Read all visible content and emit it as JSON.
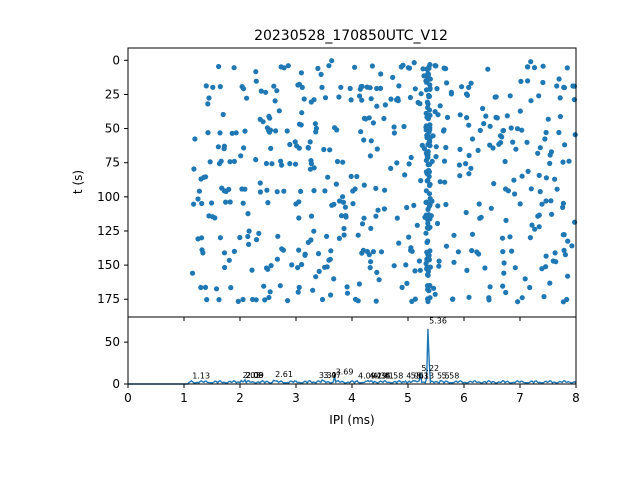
{
  "chart_data": [
    {
      "type": "scatter",
      "title": "20230528_170850UTC_V12",
      "xlabel": "",
      "ylabel": "t (s)",
      "xlim": [
        0,
        8
      ],
      "ylim": [
        188,
        -9
      ],
      "y_inverted": true,
      "yticks": [
        0,
        25,
        50,
        75,
        100,
        125,
        150,
        175
      ],
      "y_tick_labels": [
        "0",
        "25",
        "50",
        "75",
        "100",
        "125",
        "150",
        "175"
      ],
      "x_tick_labels_shown": false,
      "color": "#1f77b4",
      "marker": "circle",
      "dense_bands_t": [
        5,
        20,
        28,
        42,
        52,
        65,
        75,
        85,
        95,
        105,
        115,
        130,
        140,
        151,
        166,
        176
      ],
      "peak_ipi_column_ms": 5.36,
      "t_range": [
        0,
        178
      ],
      "ipi_range": [
        1.13,
        8.0
      ]
    },
    {
      "type": "line",
      "xlabel": "IPI (ms)",
      "ylabel": "",
      "xlim": [
        0,
        8
      ],
      "ylim": [
        0,
        80
      ],
      "xticks": [
        0,
        1,
        2,
        3,
        4,
        5,
        6,
        7,
        8
      ],
      "x_tick_labels": [
        "0",
        "1",
        "2",
        "3",
        "4",
        "5",
        "6",
        "7",
        "8"
      ],
      "yticks": [
        0,
        50
      ],
      "y_tick_labels": [
        "0",
        "50"
      ],
      "color": "#1f77b4",
      "peaks": [
        {
          "x": 1.13,
          "y": 4,
          "label": "1.13"
        },
        {
          "x": 2.03,
          "y": 5,
          "label": "2.03"
        },
        {
          "x": 2.08,
          "y": 5,
          "label": "2.08"
        },
        {
          "x": 2.09,
          "y": 5,
          "label": "2.09"
        },
        {
          "x": 2.61,
          "y": 6,
          "label": "2.61"
        },
        {
          "x": 3.39,
          "y": 5,
          "label": "3.39"
        },
        {
          "x": 3.47,
          "y": 5,
          "label": "3.47"
        },
        {
          "x": 3.69,
          "y": 9,
          "label": "3.69"
        },
        {
          "x": 4.09,
          "y": 4,
          "label": "4.09"
        },
        {
          "x": 4.29,
          "y": 4,
          "label": "4.29"
        },
        {
          "x": 4.35,
          "y": 4,
          "label": "4.35"
        },
        {
          "x": 4.41,
          "y": 4,
          "label": "4.41"
        },
        {
          "x": 4.58,
          "y": 4,
          "label": "4.58"
        },
        {
          "x": 4.95,
          "y": 4,
          "label": "4.95"
        },
        {
          "x": 5.03,
          "y": 4,
          "label": "5.03"
        },
        {
          "x": 5.13,
          "y": 4,
          "label": "5.13"
        },
        {
          "x": 5.22,
          "y": 13,
          "label": "5.22"
        },
        {
          "x": 5.36,
          "y": 70,
          "label": "5.36"
        },
        {
          "x": 5.5,
          "y": 4,
          "label": "5.5"
        },
        {
          "x": 5.58,
          "y": 4,
          "label": "5.58"
        }
      ]
    }
  ]
}
